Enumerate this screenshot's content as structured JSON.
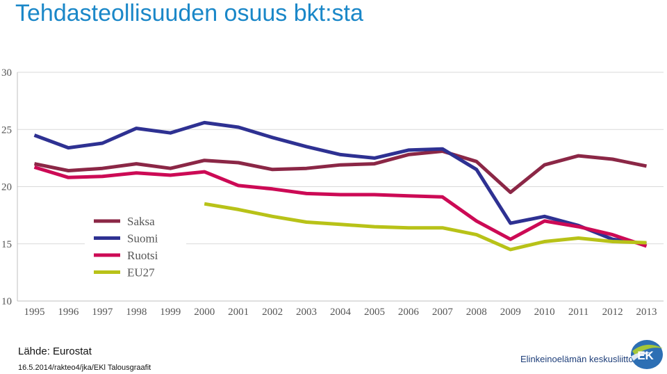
{
  "page": {
    "title": "Tehdasteollisuuden osuus bkt:sta",
    "source": "Lähde: Eurostat",
    "footer": "16.5.2014/rakteo4/jka/EKl Talousgraafit",
    "logo_text": "Elinkeinoelämän keskusliitto",
    "logo_mark": "EK"
  },
  "chart_data": {
    "type": "line",
    "title": "Tehdasteollisuuden osuus bkt:sta",
    "xlabel": "",
    "ylabel": "",
    "categories": [
      "1995",
      "1996",
      "1997",
      "1998",
      "1999",
      "2000",
      "2001",
      "2002",
      "2003",
      "2004",
      "2005",
      "2006",
      "2007",
      "2008",
      "2009",
      "2010",
      "2011",
      "2012",
      "2013"
    ],
    "ylim": [
      10,
      30
    ],
    "yticks": [
      10,
      15,
      20,
      25,
      30
    ],
    "grid": true,
    "legend_position": "left-center",
    "series": [
      {
        "name": "Saksa",
        "color": "#8b2746",
        "values": [
          22.0,
          21.4,
          21.6,
          22.0,
          21.6,
          22.3,
          22.1,
          21.5,
          21.6,
          21.9,
          22.0,
          22.8,
          23.1,
          22.2,
          19.5,
          21.9,
          22.7,
          22.4,
          21.8
        ]
      },
      {
        "name": "Suomi",
        "color": "#2e3192",
        "values": [
          24.5,
          23.4,
          23.8,
          25.1,
          24.7,
          25.6,
          25.2,
          24.3,
          23.5,
          22.8,
          22.5,
          23.2,
          23.3,
          21.5,
          16.8,
          17.4,
          16.6,
          15.4,
          15.0
        ]
      },
      {
        "name": "Ruotsi",
        "color": "#cc0a55",
        "values": [
          21.7,
          20.8,
          20.9,
          21.2,
          21.0,
          21.3,
          20.1,
          19.8,
          19.4,
          19.3,
          19.3,
          19.2,
          19.1,
          17.0,
          15.4,
          17.0,
          16.5,
          15.8,
          14.8
        ]
      },
      {
        "name": "EU27",
        "color": "#b8c218",
        "values": [
          null,
          null,
          null,
          null,
          null,
          18.5,
          18.0,
          17.4,
          16.9,
          16.7,
          16.5,
          16.4,
          16.4,
          15.8,
          14.5,
          15.2,
          15.5,
          15.2,
          15.1
        ]
      }
    ]
  }
}
